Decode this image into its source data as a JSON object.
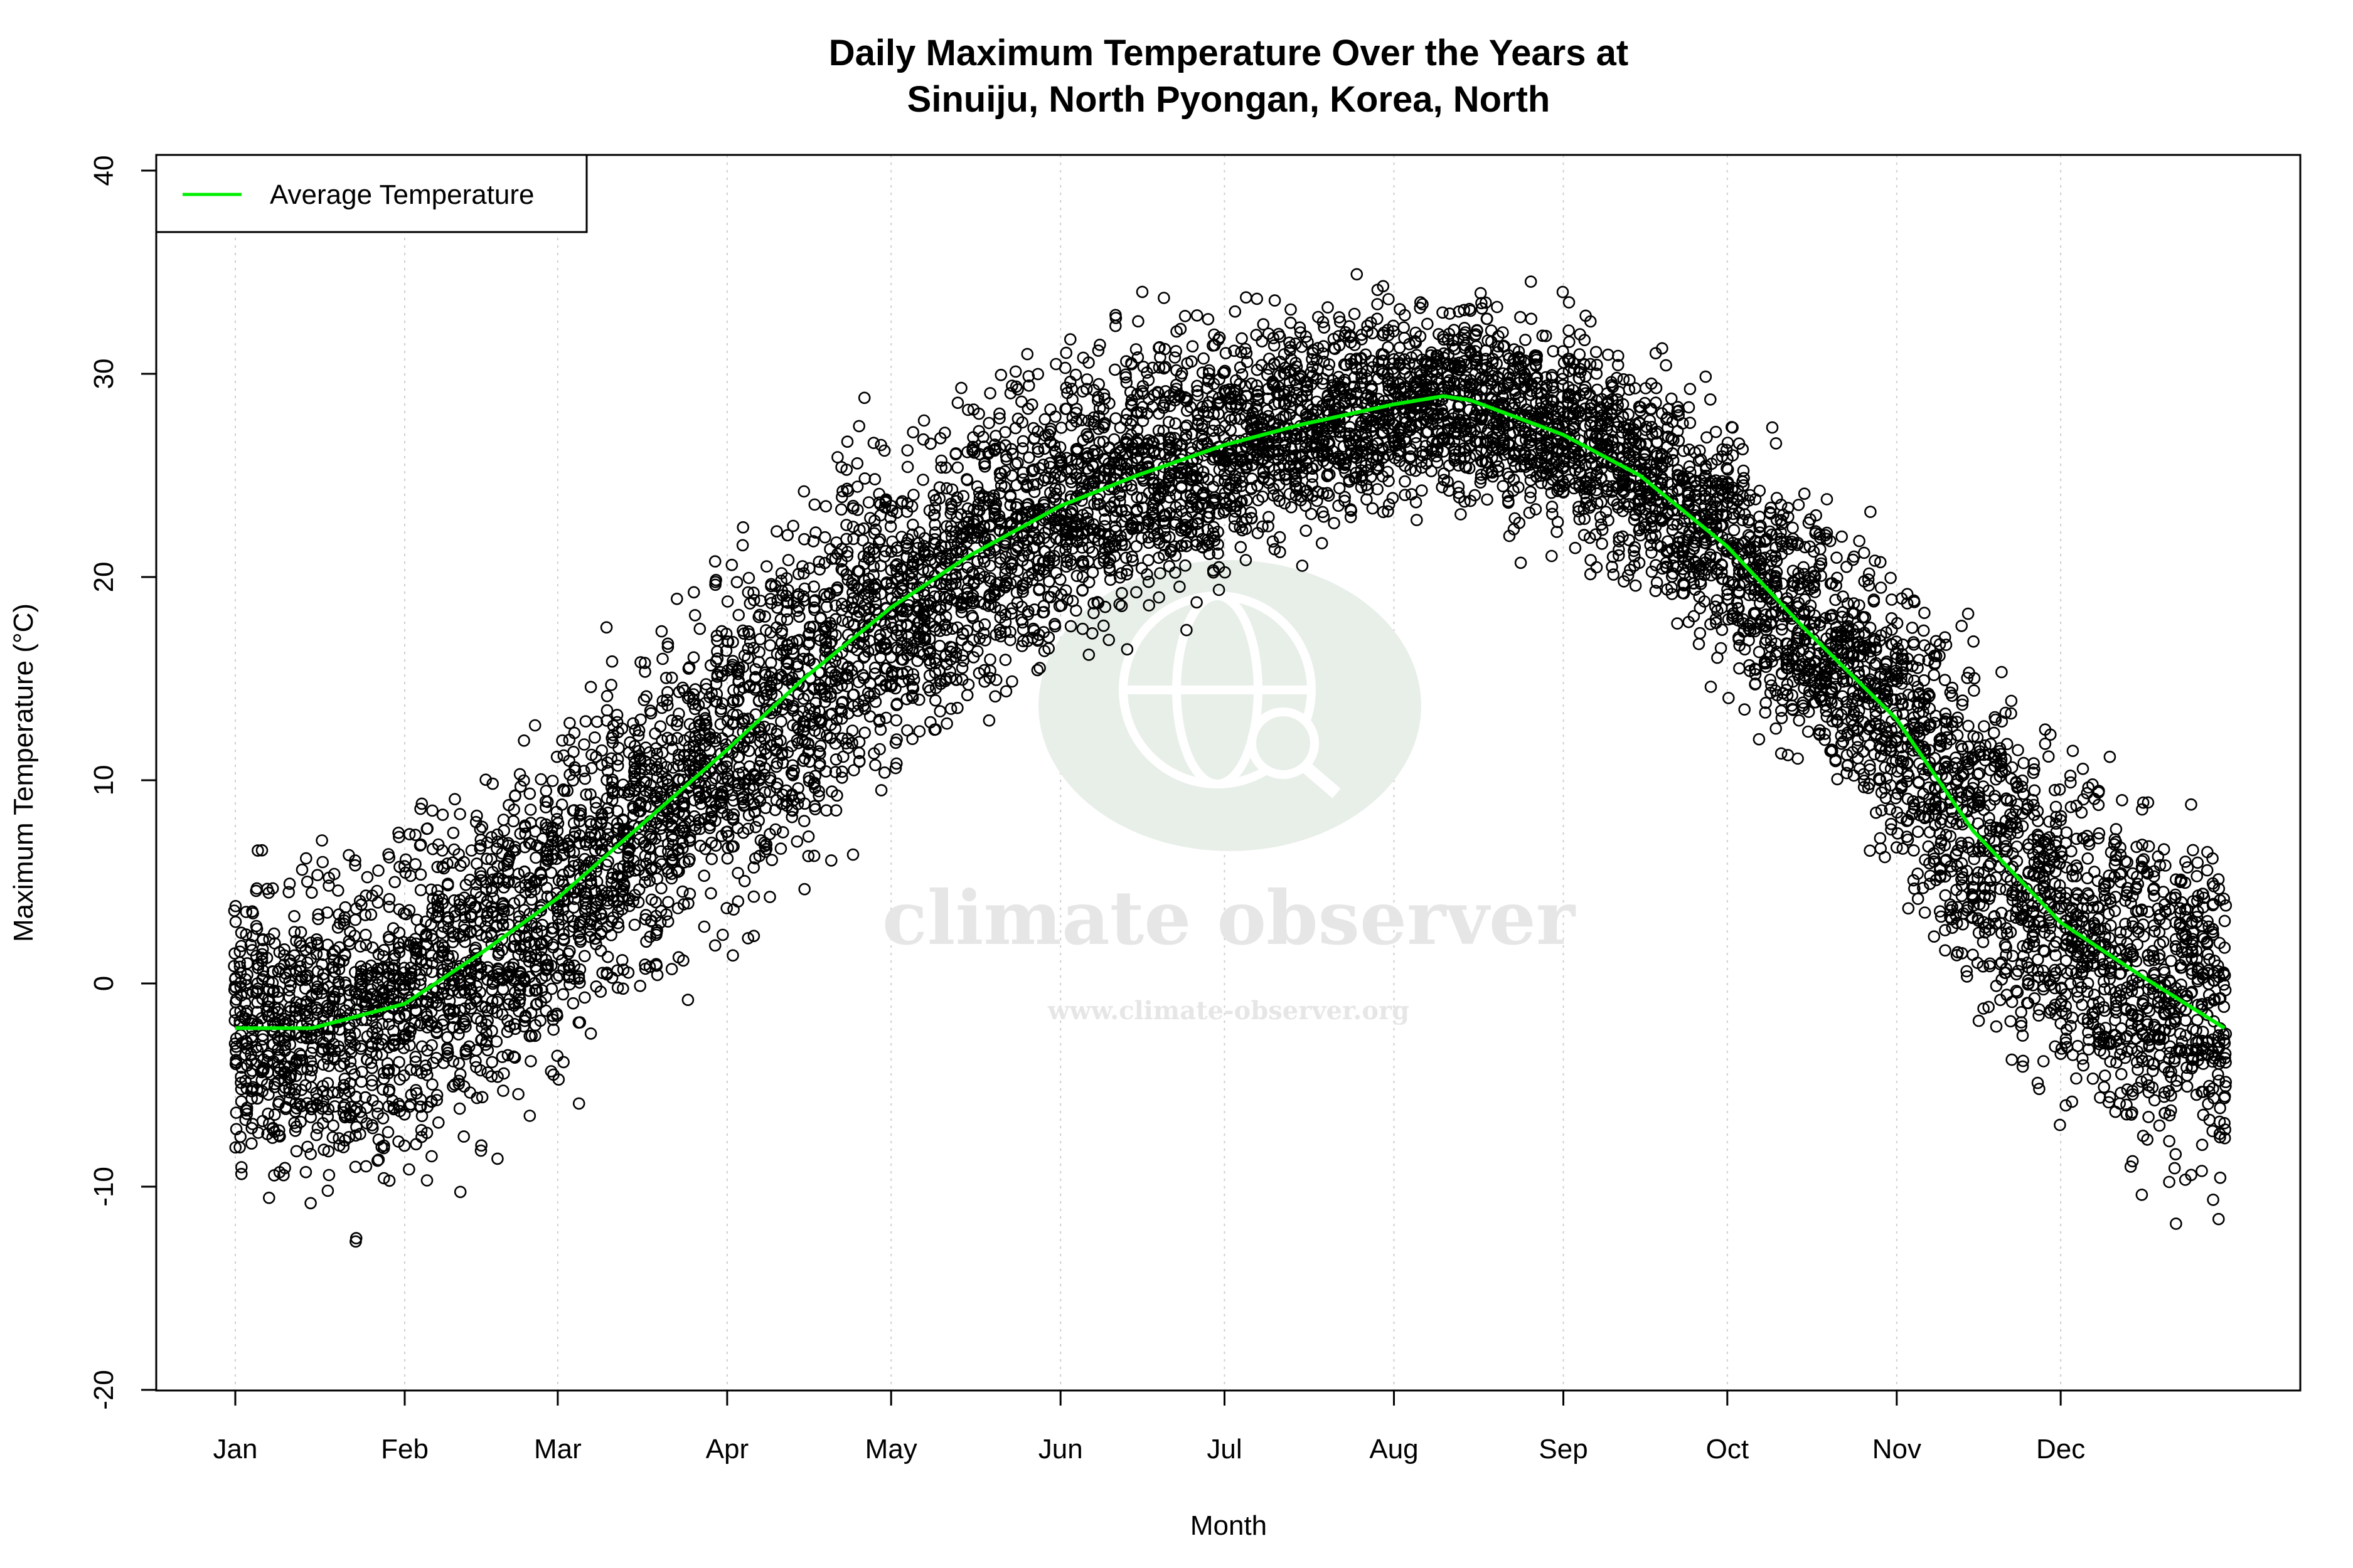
{
  "chart_data": {
    "type": "scatter",
    "title": "Daily Maximum Temperature Over the Years at",
    "subtitle": "Sinuiju, North Pyongan, Korea, North",
    "xlabel": "Month",
    "ylabel": "Maximum Temperature (°C)",
    "ylim": [
      -20,
      40
    ],
    "yticks": [
      "-20",
      "-10",
      "0",
      "10",
      "20",
      "30",
      "40"
    ],
    "xticks": [
      "Jan",
      "Feb",
      "Mar",
      "Apr",
      "May",
      "Jun",
      "Jul",
      "Aug",
      "Sep",
      "Oct",
      "Nov",
      "Dec"
    ],
    "month_start_day": [
      1,
      32,
      60,
      91,
      121,
      152,
      182,
      213,
      244,
      274,
      305,
      335
    ],
    "grid": "vertical dotted at month starts",
    "legend": {
      "placement": "top-left",
      "entries": [
        {
          "label": "Average Temperature",
          "color": "#00ee00"
        }
      ]
    },
    "average_curve": {
      "name": "Average Temperature",
      "day": [
        1,
        15,
        32,
        46,
        60,
        74,
        91,
        105,
        121,
        135,
        152,
        166,
        182,
        196,
        213,
        222,
        227,
        244,
        258,
        274,
        288,
        305,
        319,
        335,
        349,
        365
      ],
      "value": [
        -2.2,
        -2.2,
        -1,
        1.5,
        4.2,
        7.5,
        11.5,
        15,
        18.5,
        21,
        23.5,
        25,
        26.5,
        27.5,
        28.5,
        28.9,
        28.7,
        27,
        25,
        21.5,
        17.5,
        13,
        7.5,
        3,
        0.5,
        -2.2
      ]
    },
    "scatter_envelope_by_month": {
      "typical_low": [
        -13,
        -11,
        -6,
        2,
        10,
        16,
        21,
        23,
        19,
        12,
        3,
        -10
      ],
      "typical_high": [
        6,
        8,
        13,
        22,
        28,
        32,
        34,
        35,
        32,
        28,
        22,
        10
      ]
    },
    "extremes": {
      "max": 38.5,
      "min": -17.8
    },
    "point_color": "#000000",
    "curve_color": "#00ee00"
  },
  "watermark": {
    "name": "climate observer",
    "url": "www.climate-observer.org"
  }
}
